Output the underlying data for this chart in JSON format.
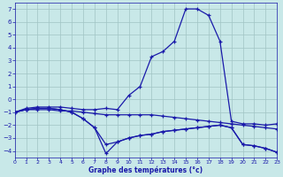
{
  "xlabel": "Graphe des températures (°c)",
  "bg_color": "#c8e8e8",
  "grid_color": "#a0c4c4",
  "line_color": "#1a1aaa",
  "xlim": [
    0,
    23
  ],
  "ylim": [
    -4.5,
    7.5
  ],
  "xticks": [
    0,
    1,
    2,
    3,
    4,
    5,
    6,
    7,
    8,
    9,
    10,
    11,
    12,
    13,
    14,
    15,
    16,
    17,
    18,
    19,
    20,
    21,
    22,
    23
  ],
  "yticks": [
    -4,
    -3,
    -2,
    -1,
    0,
    1,
    2,
    3,
    4,
    5,
    6,
    7
  ],
  "series": [
    [
      -1.0,
      -0.7,
      -0.6,
      -0.6,
      -0.6,
      -0.7,
      -0.8,
      -0.8,
      -0.7,
      -0.8,
      0.3,
      1.0,
      3.3,
      3.7,
      4.5,
      7.0,
      7.0,
      6.5,
      4.5,
      -1.7,
      -1.9,
      -1.9,
      -2.0,
      -1.9
    ],
    [
      -1.0,
      -0.8,
      -0.8,
      -0.8,
      -0.9,
      -0.9,
      -1.0,
      -1.1,
      -1.2,
      -1.2,
      -1.2,
      -1.2,
      -1.2,
      -1.3,
      -1.4,
      -1.5,
      -1.6,
      -1.7,
      -1.8,
      -1.9,
      -2.0,
      -2.1,
      -2.2,
      -2.3
    ],
    [
      -1.0,
      -0.8,
      -0.7,
      -0.7,
      -0.8,
      -1.0,
      -1.5,
      -2.2,
      -3.5,
      -3.3,
      -3.0,
      -2.8,
      -2.7,
      -2.5,
      -2.4,
      -2.3,
      -2.2,
      -2.1,
      -2.0,
      -2.2,
      -3.5,
      -3.6,
      -3.8,
      -4.1
    ],
    [
      -1.0,
      -0.8,
      -0.7,
      -0.7,
      -0.8,
      -1.0,
      -1.5,
      -2.2,
      -4.2,
      -3.3,
      -3.0,
      -2.8,
      -2.7,
      -2.5,
      -2.4,
      -2.3,
      -2.2,
      -2.1,
      -2.0,
      -2.2,
      -3.5,
      -3.6,
      -3.8,
      -4.1
    ]
  ]
}
